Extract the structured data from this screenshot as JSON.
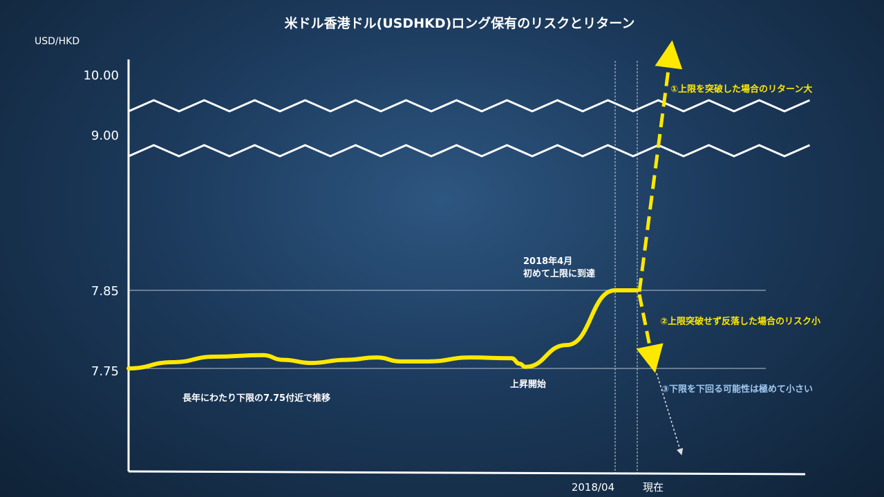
{
  "chart_data": {
    "type": "line",
    "title": "米ドル香港ドル(USDHKD)ロング保有のリスクとリターン",
    "ylabel": "USD/HKD",
    "yticks": [
      "10.00",
      "9.00",
      "7.85",
      "7.75"
    ],
    "xticks": [
      "2018/04",
      "現在"
    ],
    "series": [
      {
        "values": [
          7.75,
          7.758,
          7.765,
          7.767,
          7.761,
          7.757,
          7.761,
          7.764,
          7.759,
          7.759,
          7.764,
          7.763,
          7.756,
          7.752,
          7.78,
          7.85,
          7.85
        ]
      }
    ],
    "annotations": {
      "reach_upper": "2018年4月\n初めて上限に到達",
      "rise_start": "上昇開始",
      "long_term": "長年にわたり下限の7.75付近で推移",
      "scenario1": "①上限を突破した場合のリターン大",
      "scenario2": "②上限突破せず反落した場合のリスク小",
      "scenario3": "③下限を下回る可能性は極めて小さい"
    },
    "colors": {
      "line": "#ffe800",
      "scenario3": "#9fc8f0",
      "axis": "#ffffff"
    },
    "grid": false
  }
}
